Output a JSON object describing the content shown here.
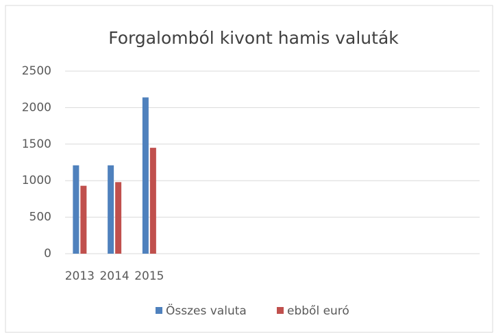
{
  "chart_data": {
    "type": "bar",
    "title": "Forgalomból kivont hamis valuták",
    "categories": [
      "2013",
      "2014",
      "2015",
      null,
      null,
      null,
      null,
      null,
      null,
      null,
      null,
      null
    ],
    "series": [
      {
        "name": "Összes valuta",
        "color": "#4f81bd",
        "values": [
          1210,
          1210,
          2140,
          null,
          null,
          null,
          null,
          null,
          null,
          null,
          null,
          null
        ]
      },
      {
        "name": "ebből euró",
        "color": "#c0504d",
        "values": [
          930,
          980,
          1450,
          null,
          null,
          null,
          null,
          null,
          null,
          null,
          null,
          null
        ]
      }
    ],
    "ylim": [
      0,
      2500
    ],
    "yticks": [
      0,
      500,
      1000,
      1500,
      2000,
      2500
    ],
    "grid": true,
    "legend": "bottom"
  }
}
